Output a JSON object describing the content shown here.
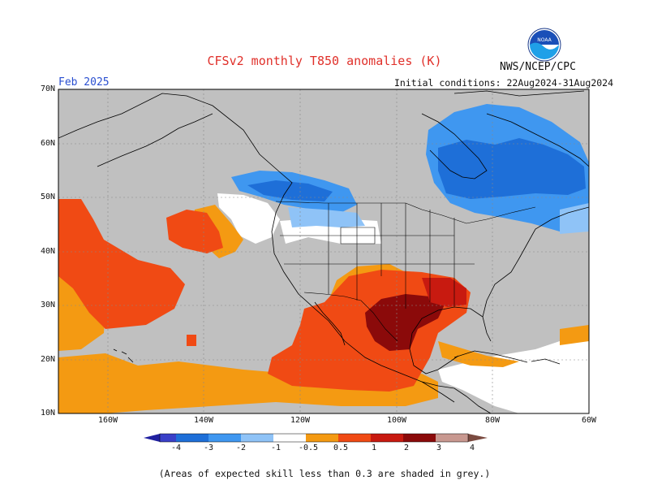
{
  "header": {
    "title": "CFSv2 monthly T850 anomalies (K)",
    "month": "Feb 2025",
    "initial_conditions": "Initial conditions: 22Aug2024-31Aug2024",
    "agency": "NWS/NCEP/CPC",
    "logo_text": "NOAA"
  },
  "axes": {
    "lat_labels": [
      "70N",
      "60N",
      "50N",
      "40N",
      "30N",
      "20N",
      "10N"
    ],
    "lon_labels": [
      "160W",
      "140W",
      "120W",
      "100W",
      "80W",
      "60W"
    ]
  },
  "colorbar": {
    "labels": [
      "-4",
      "-3",
      "-2",
      "-1",
      "-0.5",
      "0.5",
      "1",
      "2",
      "3",
      "4"
    ],
    "colors": [
      "#2020a0",
      "#3a40c8",
      "#1e6fd8",
      "#3f97f0",
      "#8fc3f7",
      "#ffffff",
      "#f49a12",
      "#f04a14",
      "#c81a10",
      "#8b0a0a",
      "#c89890",
      "#7a4a40"
    ]
  },
  "footnote": "(Areas of expected skill less than 0.3 are shaded in grey.)",
  "map_colors": {
    "grey": "#c0c0c0",
    "land_line": "#000000",
    "grid": "#888888"
  }
}
